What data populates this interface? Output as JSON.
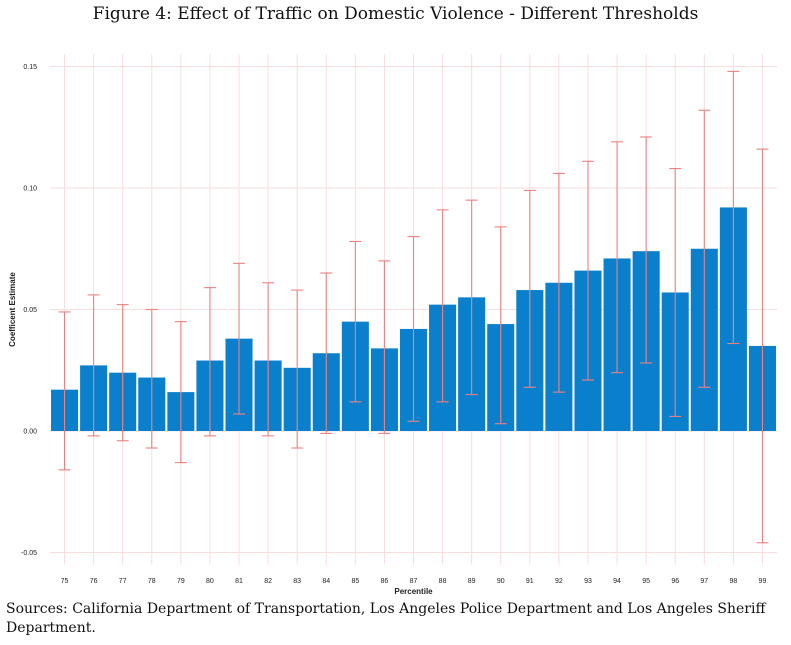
{
  "figure": {
    "title": "Figure 4: Effect of Traffic on Domestic Violence - Different Thresholds",
    "caption": "Sources: California Department of Transportation, Los Angeles Police Department and Los Angeles Sheriff Department."
  },
  "colors": {
    "bar": "#0a7fcb",
    "error_bar": "#f08080",
    "grid": "#f7dede"
  },
  "chart_data": {
    "type": "bar",
    "title": "",
    "xlabel": "Percentile",
    "ylabel": "Coefficent Estimate",
    "ylim": [
      -0.055,
      0.155
    ],
    "yticks": [
      -0.05,
      0.0,
      0.05,
      0.1,
      0.15
    ],
    "ytick_labels": [
      "-0.05",
      "0.00",
      "0.05",
      "0.10",
      "0.15"
    ],
    "grid": true,
    "categories": [
      "75",
      "76",
      "77",
      "78",
      "79",
      "80",
      "81",
      "82",
      "83",
      "84",
      "85",
      "86",
      "87",
      "88",
      "89",
      "90",
      "91",
      "92",
      "93",
      "94",
      "95",
      "96",
      "97",
      "98",
      "99"
    ],
    "values": [
      0.017,
      0.027,
      0.024,
      0.022,
      0.016,
      0.029,
      0.038,
      0.029,
      0.026,
      0.032,
      0.045,
      0.034,
      0.042,
      0.052,
      0.055,
      0.044,
      0.058,
      0.061,
      0.066,
      0.071,
      0.074,
      0.057,
      0.075,
      0.092,
      0.035
    ],
    "ci_low": [
      -0.016,
      -0.002,
      -0.004,
      -0.007,
      -0.013,
      -0.002,
      0.007,
      -0.002,
      -0.007,
      -0.001,
      0.012,
      -0.001,
      0.004,
      0.012,
      0.015,
      0.003,
      0.018,
      0.016,
      0.021,
      0.024,
      0.028,
      0.006,
      0.018,
      0.036,
      -0.046
    ],
    "ci_high": [
      0.049,
      0.056,
      0.052,
      0.05,
      0.045,
      0.059,
      0.069,
      0.061,
      0.058,
      0.065,
      0.078,
      0.07,
      0.08,
      0.091,
      0.095,
      0.084,
      0.099,
      0.106,
      0.111,
      0.119,
      0.121,
      0.108,
      0.132,
      0.148,
      0.116
    ]
  }
}
